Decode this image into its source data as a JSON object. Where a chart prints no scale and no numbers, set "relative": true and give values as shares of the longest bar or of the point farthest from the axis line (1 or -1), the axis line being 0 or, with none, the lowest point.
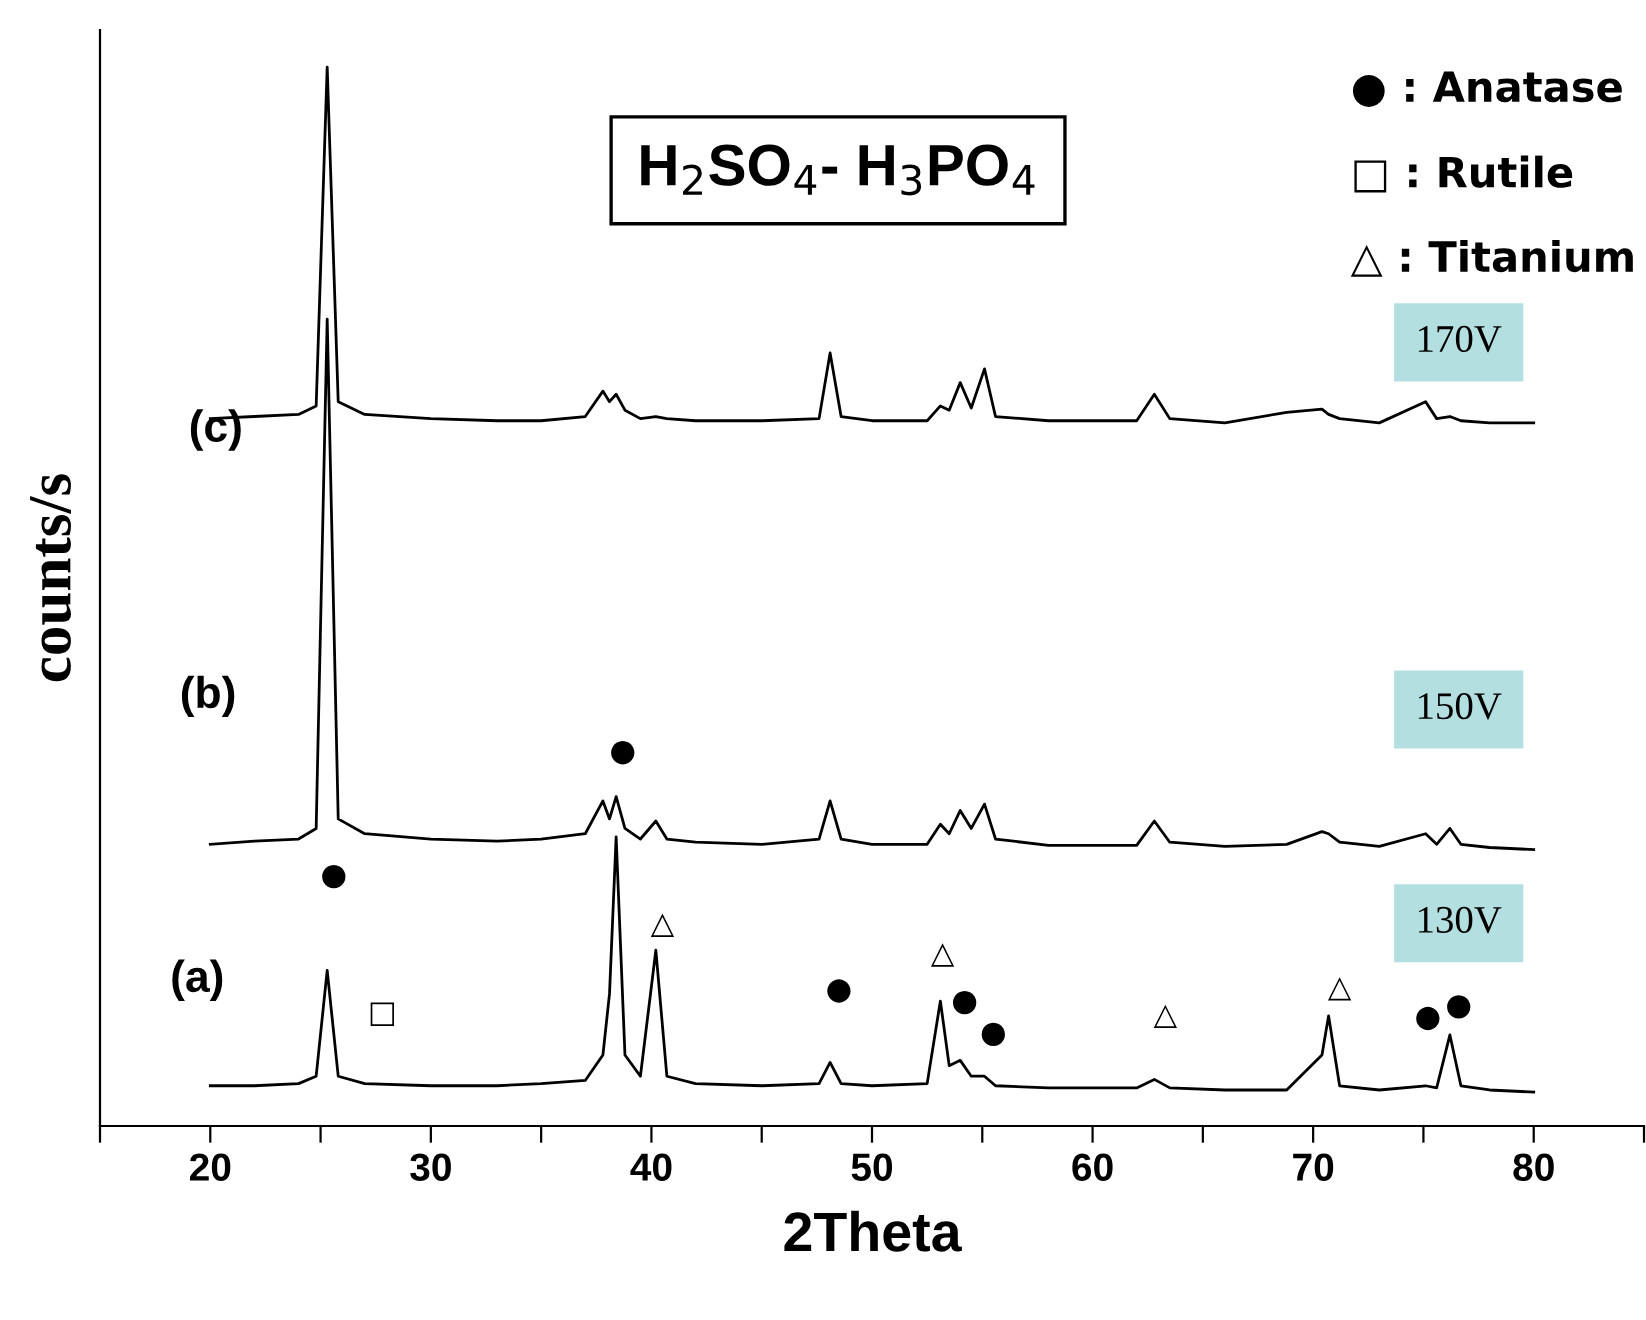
{
  "chart_data": {
    "type": "line",
    "title": "H$_{2}$SO$_{4}$- H$_{3}$PO$_{4}$",
    "xlabel": "2Theta",
    "ylabel": "counts/s",
    "relative": true,
    "x": [
      20,
      22,
      24,
      24.8,
      25.3,
      25.8,
      27,
      30,
      33,
      35,
      37,
      37.8,
      38.1,
      38.4,
      38.8,
      39.5,
      40.2,
      40.7,
      42,
      45,
      47.6,
      48.1,
      48.6,
      50,
      52.5,
      53.1,
      53.5,
      54,
      54.5,
      55.1,
      55.6,
      58,
      62,
      62.8,
      63.5,
      66,
      68.8,
      70.4,
      70.7,
      71.2,
      73,
      75.1,
      75.6,
      76.2,
      76.7,
      78,
      80
    ],
    "series": [
      {
        "color": "#000000",
        "values": [
          0.038,
          0.038,
          0.04,
          0.047,
          0.147,
          0.047,
          0.04,
          0.038,
          0.038,
          0.04,
          0.043,
          0.067,
          0.125,
          0.273,
          0.067,
          0.047,
          0.166,
          0.047,
          0.04,
          0.038,
          0.04,
          0.06,
          0.04,
          0.038,
          0.04,
          0.118,
          0.057,
          0.062,
          0.047,
          0.047,
          0.038,
          0.036,
          0.036,
          0.044,
          0.036,
          0.034,
          0.034,
          0.067,
          0.104,
          0.038,
          0.034,
          0.038,
          0.036,
          0.086,
          0.038,
          0.034,
          0.032
        ]
      },
      {
        "color": "#000000",
        "values": [
          0.266,
          0.269,
          0.271,
          0.281,
          0.762,
          0.29,
          0.276,
          0.271,
          0.269,
          0.271,
          0.276,
          0.307,
          0.29,
          0.311,
          0.281,
          0.271,
          0.288,
          0.271,
          0.268,
          0.266,
          0.271,
          0.307,
          0.271,
          0.266,
          0.266,
          0.285,
          0.276,
          0.298,
          0.281,
          0.304,
          0.271,
          0.265,
          0.265,
          0.288,
          0.268,
          0.264,
          0.266,
          0.278,
          0.276,
          0.268,
          0.264,
          0.276,
          0.266,
          0.281,
          0.266,
          0.263,
          0.261
        ]
      },
      {
        "color": "#000000",
        "values": [
          0.668,
          0.67,
          0.672,
          0.68,
          1.0,
          0.684,
          0.672,
          0.668,
          0.666,
          0.666,
          0.67,
          0.694,
          0.684,
          0.691,
          0.676,
          0.668,
          0.67,
          0.668,
          0.666,
          0.666,
          0.668,
          0.73,
          0.67,
          0.666,
          0.666,
          0.68,
          0.676,
          0.702,
          0.678,
          0.715,
          0.67,
          0.666,
          0.666,
          0.691,
          0.668,
          0.664,
          0.674,
          0.677,
          0.672,
          0.668,
          0.664,
          0.684,
          0.668,
          0.67,
          0.666,
          0.664,
          0.664
        ]
      }
    ],
    "xlim": [
      15,
      85
    ],
    "xticks": [
      {
        "value": 15,
        "label": null
      },
      20,
      {
        "value": 25,
        "label": null
      },
      30,
      {
        "value": 35,
        "label": null
      },
      40,
      {
        "value": 45,
        "label": null
      },
      50,
      {
        "value": 55,
        "label": null
      },
      60,
      {
        "value": 65,
        "label": null
      },
      70,
      {
        "value": 75,
        "label": null
      },
      80,
      {
        "value": 85,
        "label": null
      }
    ],
    "grid": false,
    "annotations": [
      "(c)",
      "(b)",
      "(a)",
      "170V",
      "150V",
      "130V",
      "● : Anatase",
      "□ : Rutile",
      "△ : Titanium",
      "●",
      "□",
      "△",
      "●",
      "△",
      "●",
      "●",
      "△",
      "△",
      "●",
      "●",
      "●"
    ]
  }
}
